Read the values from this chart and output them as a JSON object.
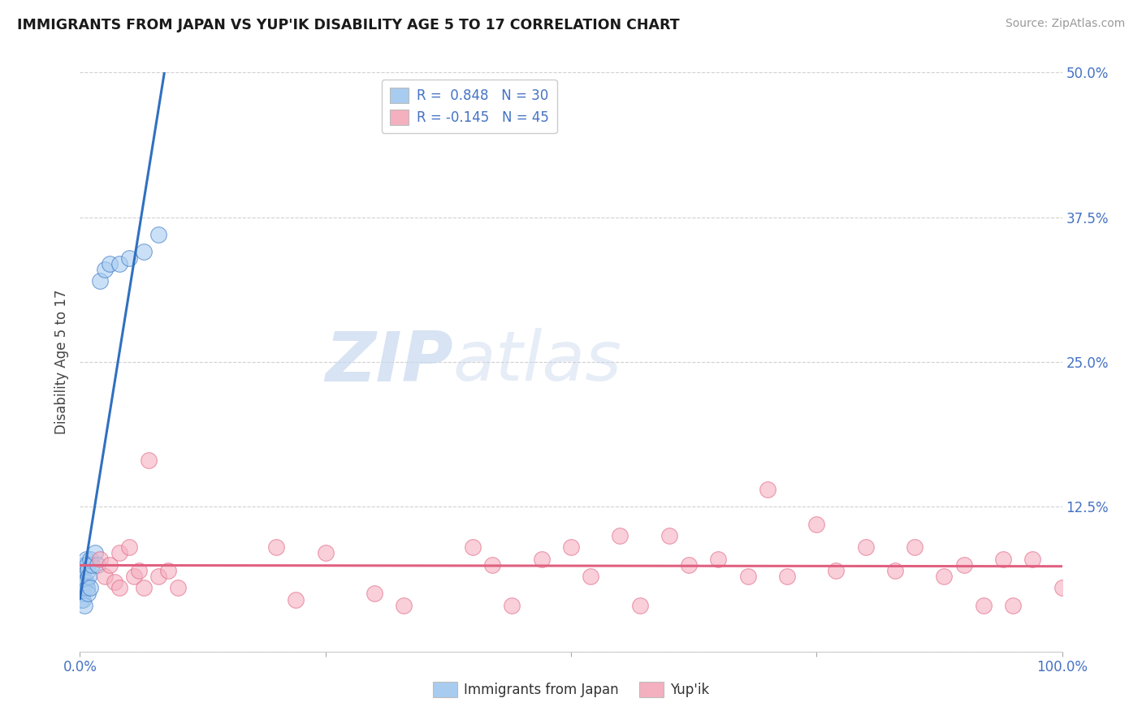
{
  "title": "IMMIGRANTS FROM JAPAN VS YUP'IK DISABILITY AGE 5 TO 17 CORRELATION CHART",
  "source": "Source: ZipAtlas.com",
  "ylabel": "Disability Age 5 to 17",
  "xlim": [
    0,
    1.0
  ],
  "ylim": [
    0,
    0.5
  ],
  "color_japan": "#A8CCF0",
  "color_yupik": "#F5B0C0",
  "line_color_japan": "#3070C0",
  "line_color_yupik": "#E06080",
  "tick_color": "#4472C4",
  "watermark_zip": "ZIP",
  "watermark_atlas": "atlas",
  "background_color": "#FFFFFF",
  "japan_points_x": [
    0.001,
    0.001,
    0.002,
    0.002,
    0.003,
    0.003,
    0.004,
    0.004,
    0.005,
    0.005,
    0.005,
    0.006,
    0.006,
    0.007,
    0.007,
    0.008,
    0.008,
    0.009,
    0.01,
    0.01,
    0.012,
    0.015,
    0.018,
    0.02,
    0.025,
    0.03,
    0.04,
    0.05,
    0.065,
    0.08
  ],
  "japan_points_y": [
    0.055,
    0.045,
    0.065,
    0.05,
    0.06,
    0.045,
    0.07,
    0.055,
    0.075,
    0.06,
    0.04,
    0.08,
    0.06,
    0.075,
    0.055,
    0.07,
    0.05,
    0.065,
    0.08,
    0.055,
    0.075,
    0.085,
    0.075,
    0.32,
    0.33,
    0.335,
    0.335,
    0.34,
    0.345,
    0.36
  ],
  "yupik_points_x": [
    0.02,
    0.025,
    0.03,
    0.035,
    0.04,
    0.04,
    0.05,
    0.055,
    0.06,
    0.065,
    0.07,
    0.08,
    0.09,
    0.1,
    0.2,
    0.22,
    0.25,
    0.3,
    0.33,
    0.4,
    0.42,
    0.44,
    0.47,
    0.5,
    0.52,
    0.55,
    0.57,
    0.6,
    0.62,
    0.65,
    0.68,
    0.7,
    0.72,
    0.75,
    0.77,
    0.8,
    0.83,
    0.85,
    0.88,
    0.9,
    0.92,
    0.94,
    0.95,
    0.97,
    1.0
  ],
  "yupik_points_y": [
    0.08,
    0.065,
    0.075,
    0.06,
    0.085,
    0.055,
    0.09,
    0.065,
    0.07,
    0.055,
    0.165,
    0.065,
    0.07,
    0.055,
    0.09,
    0.045,
    0.085,
    0.05,
    0.04,
    0.09,
    0.075,
    0.04,
    0.08,
    0.09,
    0.065,
    0.1,
    0.04,
    0.1,
    0.075,
    0.08,
    0.065,
    0.14,
    0.065,
    0.11,
    0.07,
    0.09,
    0.07,
    0.09,
    0.065,
    0.075,
    0.04,
    0.08,
    0.04,
    0.08,
    0.055
  ]
}
